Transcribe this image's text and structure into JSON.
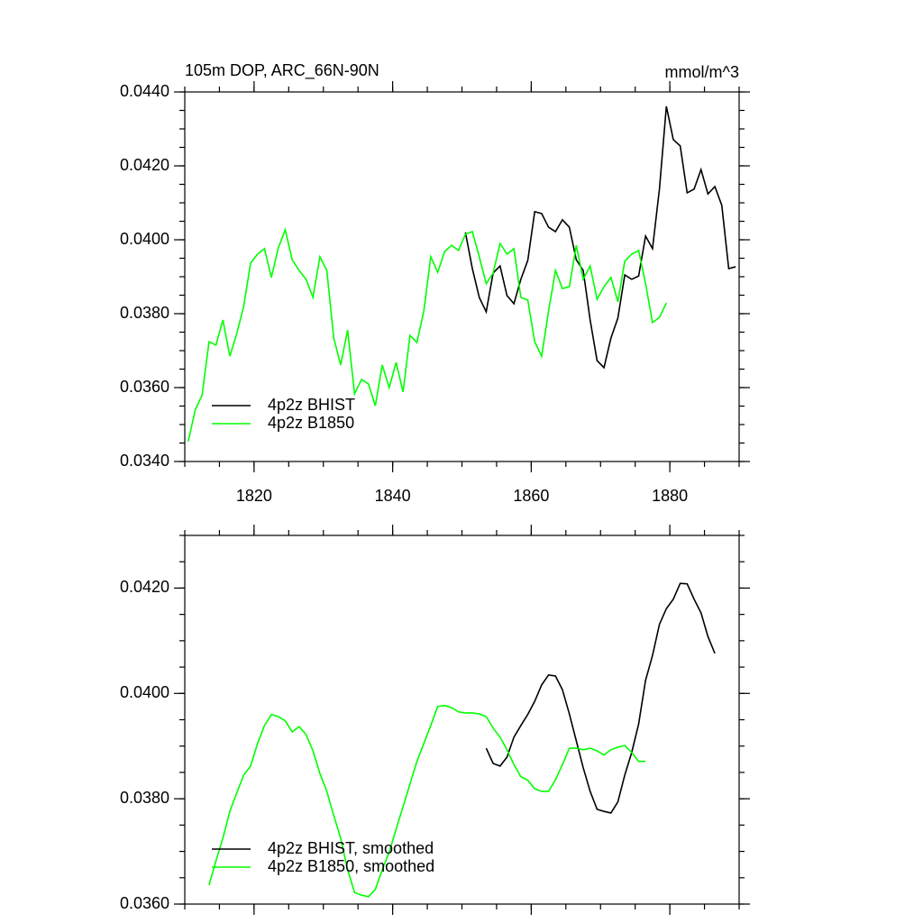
{
  "chart_data": [
    {
      "type": "line",
      "title": "105m DOP, ARC_66N-90N",
      "units": "mmol/m^3",
      "xlim": [
        1810,
        1890
      ],
      "ylim": [
        0.034,
        0.044
      ],
      "xticks": [
        1820,
        1840,
        1860,
        1880
      ],
      "yticks": [
        {
          "value": 0.034,
          "label": "0.0340"
        },
        {
          "value": 0.036,
          "label": "0.0360"
        },
        {
          "value": 0.038,
          "label": "0.0380"
        },
        {
          "value": 0.04,
          "label": "0.0400"
        },
        {
          "value": 0.042,
          "label": "0.0420"
        },
        {
          "value": 0.044,
          "label": "0.0440"
        }
      ],
      "legend": "lower left",
      "series": [
        {
          "name": "4p2z BHIST",
          "color": "#000000",
          "x": [
            1850.5,
            1851.5,
            1852.5,
            1853.5,
            1854.5,
            1855.5,
            1856.5,
            1857.5,
            1858.5,
            1859.5,
            1860.5,
            1861.5,
            1862.5,
            1863.5,
            1864.5,
            1865.5,
            1866.5,
            1867.5,
            1868.5,
            1869.5,
            1870.5,
            1871.5,
            1872.5,
            1873.5,
            1874.5,
            1875.5,
            1876.5,
            1877.5,
            1878.5,
            1879.5,
            1880.5,
            1881.5,
            1882.5,
            1883.5,
            1884.5,
            1885.5,
            1886.5,
            1887.5,
            1888.5,
            1889.5
          ],
          "values": [
            0.0402,
            0.03922,
            0.03844,
            0.03805,
            0.0391,
            0.03929,
            0.03849,
            0.03827,
            0.03893,
            0.03944,
            0.04076,
            0.04071,
            0.04034,
            0.04022,
            0.04054,
            0.04034,
            0.03946,
            0.03917,
            0.03783,
            0.03673,
            0.03654,
            0.03734,
            0.03788,
            0.03905,
            0.03893,
            0.03902,
            0.0401,
            0.03976,
            0.04137,
            0.04361,
            0.04271,
            0.04254,
            0.04127,
            0.04137,
            0.0419,
            0.04124,
            0.04144,
            0.04093,
            0.03922,
            0.03927
          ]
        },
        {
          "name": "4p2z B1850",
          "color": "#00ff00",
          "x": [
            1810.5,
            1811.5,
            1812.5,
            1813.5,
            1814.5,
            1815.5,
            1816.5,
            1817.5,
            1818.5,
            1819.5,
            1820.5,
            1821.5,
            1822.5,
            1823.5,
            1824.5,
            1825.5,
            1826.5,
            1827.5,
            1828.5,
            1829.5,
            1830.5,
            1831.5,
            1832.5,
            1833.5,
            1834.5,
            1835.5,
            1836.5,
            1837.5,
            1838.5,
            1839.5,
            1840.5,
            1841.5,
            1842.5,
            1843.5,
            1844.5,
            1845.5,
            1846.5,
            1847.5,
            1848.5,
            1849.5,
            1850.5,
            1851.5,
            1852.5,
            1853.5,
            1854.5,
            1855.5,
            1856.5,
            1857.5,
            1858.5,
            1859.5,
            1860.5,
            1861.5,
            1862.5,
            1863.5,
            1864.5,
            1865.5,
            1866.5,
            1867.5,
            1868.5,
            1869.5,
            1870.5,
            1871.5,
            1872.5,
            1873.5,
            1874.5,
            1875.5,
            1876.5,
            1877.5,
            1878.5,
            1879.5
          ],
          "values": [
            0.03454,
            0.03539,
            0.0358,
            0.03724,
            0.03715,
            0.03783,
            0.03685,
            0.03746,
            0.0382,
            0.03937,
            0.03961,
            0.03976,
            0.03898,
            0.03978,
            0.04027,
            0.03946,
            0.03917,
            0.03893,
            0.03844,
            0.03954,
            0.03917,
            0.03734,
            0.03661,
            0.03756,
            0.03583,
            0.03622,
            0.0361,
            0.03551,
            0.03661,
            0.036,
            0.03668,
            0.03588,
            0.03741,
            0.03722,
            0.03807,
            0.03954,
            0.03912,
            0.03968,
            0.03985,
            0.03971,
            0.04015,
            0.04022,
            0.03954,
            0.03881,
            0.0391,
            0.0399,
            0.03961,
            0.03976,
            0.03844,
            0.03837,
            0.03724,
            0.03685,
            0.03807,
            0.03917,
            0.03868,
            0.03873,
            0.03985,
            0.03893,
            0.03929,
            0.03839,
            0.03873,
            0.03898,
            0.03832,
            0.03942,
            0.03961,
            0.03971,
            0.03881,
            0.03776,
            0.0379,
            0.03829
          ]
        }
      ]
    },
    {
      "type": "line",
      "xlim": [
        1810,
        1890
      ],
      "ylim": [
        0.036,
        0.043
      ],
      "xticks": [
        1820,
        1840,
        1860,
        1880
      ],
      "yticks": [
        {
          "value": 0.036,
          "label": "0.0360"
        },
        {
          "value": 0.038,
          "label": "0.0380"
        },
        {
          "value": 0.04,
          "label": "0.0400"
        },
        {
          "value": 0.042,
          "label": "0.0420"
        }
      ],
      "legend": "lower left",
      "series": [
        {
          "name": "4p2z BHIST, smoothed",
          "color": "#000000",
          "x": [
            1853.5,
            1854.5,
            1855.5,
            1856.5,
            1857.5,
            1858.5,
            1859.5,
            1860.5,
            1861.5,
            1862.5,
            1863.5,
            1864.5,
            1865.5,
            1866.5,
            1867.5,
            1868.5,
            1869.5,
            1870.5,
            1871.5,
            1872.5,
            1873.5,
            1874.5,
            1875.5,
            1876.5,
            1877.5,
            1878.5,
            1879.5,
            1880.5,
            1881.5,
            1882.5,
            1883.5,
            1884.5,
            1885.5,
            1886.5
          ],
          "values": [
            0.03896,
            0.03867,
            0.03862,
            0.03879,
            0.03917,
            0.03939,
            0.0396,
            0.03985,
            0.04016,
            0.04035,
            0.04033,
            0.04007,
            0.03961,
            0.0391,
            0.03859,
            0.03814,
            0.0378,
            0.03776,
            0.03773,
            0.03794,
            0.03845,
            0.03888,
            0.03942,
            0.04025,
            0.04072,
            0.04131,
            0.04161,
            0.04179,
            0.04209,
            0.04208,
            0.04179,
            0.04153,
            0.04108,
            0.04076
          ]
        },
        {
          "name": "4p2z B1850, smoothed",
          "color": "#00ff00",
          "x": [
            1813.5,
            1814.5,
            1815.5,
            1816.5,
            1817.5,
            1818.5,
            1819.5,
            1820.5,
            1821.5,
            1822.5,
            1823.5,
            1824.5,
            1825.5,
            1826.5,
            1827.5,
            1828.5,
            1829.5,
            1830.5,
            1831.5,
            1832.5,
            1833.5,
            1834.5,
            1835.5,
            1836.5,
            1837.5,
            1838.5,
            1839.5,
            1840.5,
            1841.5,
            1842.5,
            1843.5,
            1844.5,
            1845.5,
            1846.5,
            1847.5,
            1848.5,
            1849.5,
            1850.5,
            1851.5,
            1852.5,
            1853.5,
            1854.5,
            1855.5,
            1856.5,
            1857.5,
            1858.5,
            1859.5,
            1860.5,
            1861.5,
            1862.5,
            1863.5,
            1864.5,
            1865.5,
            1866.5,
            1867.5,
            1868.5,
            1869.5,
            1870.5,
            1871.5,
            1872.5,
            1873.5,
            1874.5,
            1875.5,
            1876.5
          ],
          "values": [
            0.03636,
            0.03682,
            0.03725,
            0.03776,
            0.03811,
            0.03845,
            0.03862,
            0.03905,
            0.03939,
            0.0396,
            0.03956,
            0.03948,
            0.03927,
            0.03937,
            0.03922,
            0.03891,
            0.03848,
            0.03814,
            0.03768,
            0.03725,
            0.03665,
            0.03622,
            0.03617,
            0.03614,
            0.03628,
            0.03665,
            0.03699,
            0.03742,
            0.03785,
            0.03828,
            0.03871,
            0.03905,
            0.03939,
            0.03975,
            0.03977,
            0.03973,
            0.03965,
            0.03963,
            0.03963,
            0.03961,
            0.03956,
            0.03934,
            0.03917,
            0.03893,
            0.03865,
            0.03842,
            0.03835,
            0.03819,
            0.03814,
            0.03814,
            0.03836,
            0.03865,
            0.03896,
            0.03896,
            0.03893,
            0.03896,
            0.03891,
            0.03883,
            0.03893,
            0.03898,
            0.03901,
            0.03888,
            0.03871,
            0.03871
          ]
        }
      ]
    }
  ]
}
